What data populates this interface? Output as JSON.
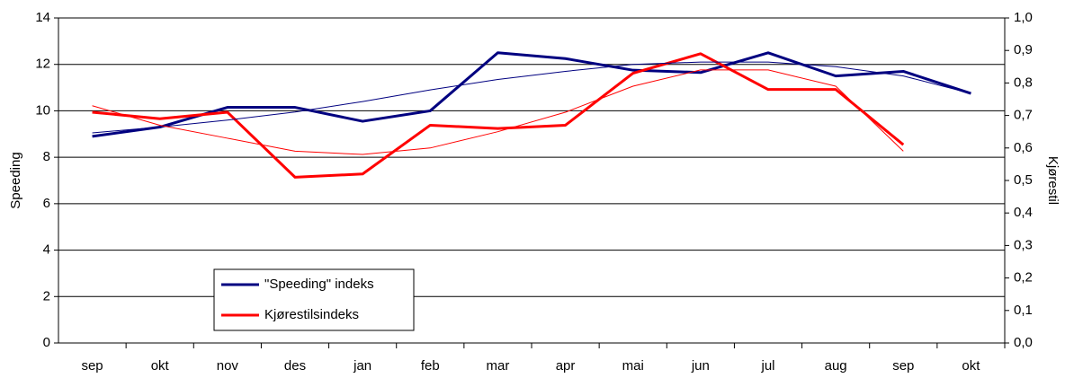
{
  "chart_data": {
    "type": "line",
    "y_label": "Speeding",
    "y2_label": "Kjørestil",
    "categories": [
      "sep",
      "okt",
      "nov",
      "des",
      "jan",
      "feb",
      "mar",
      "apr",
      "mai",
      "jun",
      "jul",
      "aug",
      "sep",
      "okt"
    ],
    "ylim": [
      0,
      14
    ],
    "yticks": [
      0,
      2,
      4,
      6,
      8,
      10,
      12,
      14
    ],
    "y2lim": [
      0,
      1
    ],
    "y2ticks": [
      {
        "value": 0,
        "label": "0,0"
      },
      {
        "value": 0.1,
        "label": "0,1"
      },
      {
        "value": 0.2,
        "label": "0,2"
      },
      {
        "value": 0.3,
        "label": "0,3"
      },
      {
        "value": 0.4,
        "label": "0,4"
      },
      {
        "value": 0.5,
        "label": "0,5"
      },
      {
        "value": 0.6,
        "label": "0,6"
      },
      {
        "value": 0.7,
        "label": "0,7"
      },
      {
        "value": 0.8,
        "label": "0,8"
      },
      {
        "value": 0.9,
        "label": "0,9"
      },
      {
        "value": 1,
        "label": "1,0"
      }
    ],
    "grid": true,
    "series": [
      {
        "name": "\"Speeding\" indeks",
        "color": "#000080",
        "width": 3,
        "values": [
          8.9,
          9.3,
          10.15,
          10.15,
          9.55,
          10.0,
          12.5,
          12.25,
          11.75,
          11.65,
          12.5,
          11.5,
          11.7,
          10.75
        ]
      },
      {
        "name": "Kjørestilsindeks",
        "color": "#ff0000",
        "width": 3,
        "axis": "y2",
        "values": [
          0.71,
          0.69,
          0.71,
          0.51,
          0.52,
          0.67,
          0.66,
          0.67,
          0.83,
          0.89,
          0.78,
          0.78,
          0.61,
          null
        ]
      },
      {
        "color": "#000080",
        "width": 1,
        "values": [
          9.05,
          9.3,
          9.6,
          9.95,
          10.4,
          10.9,
          11.35,
          11.7,
          12.0,
          12.1,
          12.1,
          11.9,
          11.5,
          10.75
        ]
      },
      {
        "color": "#ff0000",
        "width": 1,
        "axis": "y2",
        "values": [
          0.73,
          0.67,
          0.63,
          0.59,
          0.58,
          0.6,
          0.65,
          0.71,
          0.79,
          0.84,
          0.84,
          0.79,
          0.59,
          null
        ]
      }
    ]
  }
}
